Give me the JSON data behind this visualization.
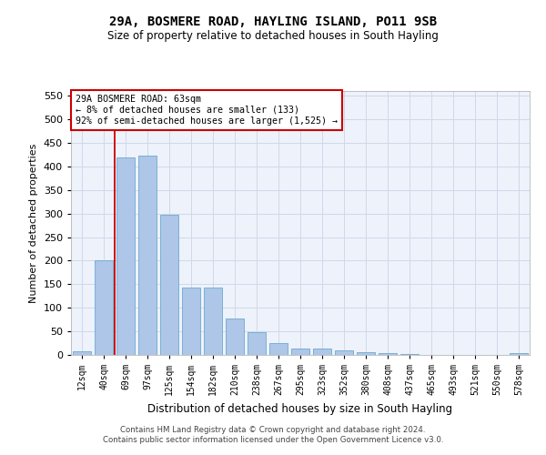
{
  "title": "29A, BOSMERE ROAD, HAYLING ISLAND, PO11 9SB",
  "subtitle": "Size of property relative to detached houses in South Hayling",
  "xlabel": "Distribution of detached houses by size in South Hayling",
  "ylabel": "Number of detached properties",
  "categories": [
    "12sqm",
    "40sqm",
    "69sqm",
    "97sqm",
    "125sqm",
    "154sqm",
    "182sqm",
    "210sqm",
    "238sqm",
    "267sqm",
    "295sqm",
    "323sqm",
    "352sqm",
    "380sqm",
    "408sqm",
    "437sqm",
    "465sqm",
    "493sqm",
    "521sqm",
    "550sqm",
    "578sqm"
  ],
  "values": [
    8,
    200,
    420,
    422,
    298,
    143,
    143,
    77,
    48,
    25,
    13,
    13,
    9,
    5,
    4,
    2,
    0,
    0,
    0,
    0,
    3
  ],
  "bar_color": "#aec6e8",
  "bar_edge_color": "#6baad0",
  "grid_color": "#d0d8ea",
  "background_color": "#eef2fa",
  "annotation_line1": "29A BOSMERE ROAD: 63sqm",
  "annotation_line2": "← 8% of detached houses are smaller (133)",
  "annotation_line3": "92% of semi-detached houses are larger (1,525) →",
  "annotation_box_color": "#ffffff",
  "annotation_box_edge": "#cc0000",
  "marker_line_color": "#cc0000",
  "ylim": [
    0,
    560
  ],
  "yticks": [
    0,
    50,
    100,
    150,
    200,
    250,
    300,
    350,
    400,
    450,
    500,
    550
  ],
  "footer1": "Contains HM Land Registry data © Crown copyright and database right 2024.",
  "footer2": "Contains public sector information licensed under the Open Government Licence v3.0."
}
